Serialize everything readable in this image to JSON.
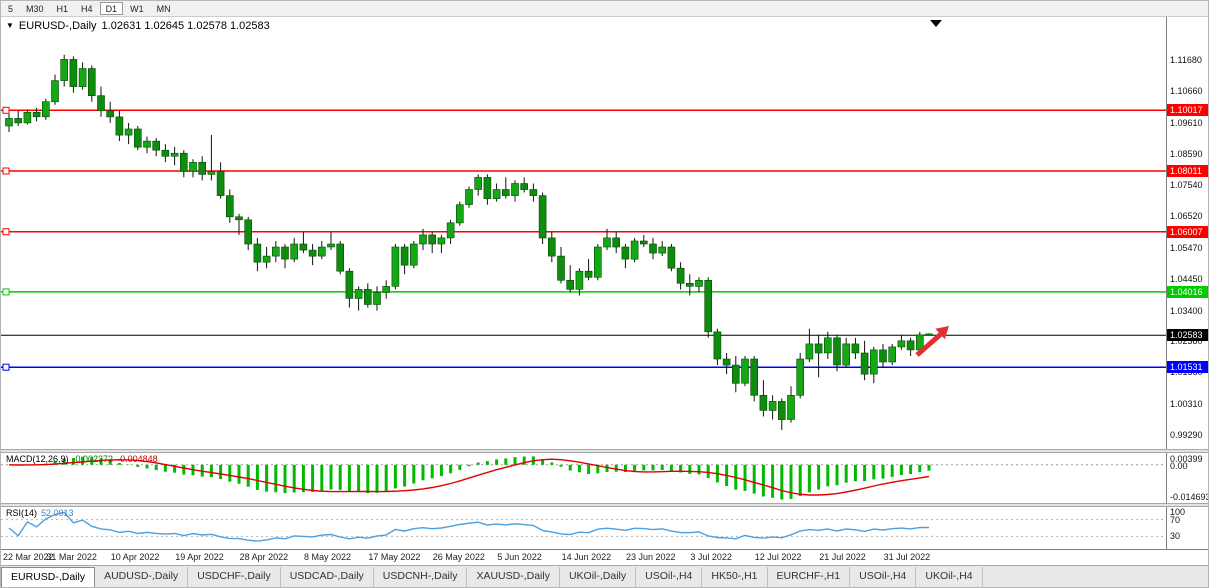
{
  "toolbar": {
    "timeframes": [
      {
        "label": "5",
        "active": false
      },
      {
        "label": "M30",
        "active": false
      },
      {
        "label": "H1",
        "active": false
      },
      {
        "label": "H4",
        "active": false
      },
      {
        "label": "D1",
        "active": true
      },
      {
        "label": "W1",
        "active": false
      },
      {
        "label": "MN",
        "active": false
      }
    ]
  },
  "chart": {
    "title": "EURUSD-,Daily",
    "ohlc": "1.02631 1.02645 1.02578 1.02583",
    "macd": {
      "name": "MACD(12,26,9)",
      "main": "-0.002372",
      "signal": "-0.004848"
    },
    "rsi": {
      "name": "RSI(14)",
      "value": "52.0913"
    }
  },
  "chart_data": {
    "type": "candlestick",
    "title": "EURUSD-,Daily",
    "symbol": "EURUSD-",
    "timeframe": "Daily",
    "last_ohlc": {
      "open": 1.02631,
      "high": 1.02645,
      "low": 1.02578,
      "close": 1.02583
    },
    "y_ticks": [
      "1.11680",
      "1.10660",
      "1.09610",
      "1.08590",
      "1.07540",
      "1.06520",
      "1.05470",
      "1.04450",
      "1.03400",
      "1.02380",
      "1.01360",
      "1.00310",
      "0.99290"
    ],
    "x_labels": [
      "22 Mar 2022",
      "31 Mar 2022",
      "10 Apr 2022",
      "19 Apr 2022",
      "28 Apr 2022",
      "8 May 2022",
      "17 May 2022",
      "26 May 2022",
      "5 Jun 2022",
      "14 Jun 2022",
      "23 Jun 2022",
      "3 Jul 2022",
      "12 Jul 2022",
      "21 Jul 2022",
      "31 Jul 2022"
    ],
    "hlines": [
      {
        "price": 1.10017,
        "label": "1.10017",
        "color": "#ff0000"
      },
      {
        "price": 1.08011,
        "label": "1.08011",
        "color": "#ff0000"
      },
      {
        "price": 1.06007,
        "label": "1.06007",
        "color": "#ff0000"
      },
      {
        "price": 1.04016,
        "label": "1.04016",
        "color": "#00cc00"
      },
      {
        "price": 1.01531,
        "label": "1.01531",
        "color": "#0000ff"
      }
    ],
    "current_price": {
      "price": 1.02583,
      "label": "1.02583",
      "color": "#000000"
    },
    "macd_axis_labels": [
      "0.00399",
      "0.00",
      "-0.014693"
    ],
    "rsi_levels": [
      {
        "label": "100",
        "value": 100
      },
      {
        "label": "70",
        "value": 70
      },
      {
        "label": "30",
        "value": 30
      }
    ],
    "annotations": [
      {
        "type": "arrow",
        "direction": "up-right",
        "color": "#e03030"
      }
    ],
    "candles": [
      [
        1.095,
        1.099,
        1.093,
        1.0975
      ],
      [
        1.0975,
        1.1,
        1.095,
        1.096
      ],
      [
        1.096,
        1.1005,
        1.0955,
        1.0995
      ],
      [
        1.0995,
        1.101,
        1.0965,
        1.098
      ],
      [
        1.098,
        1.104,
        1.097,
        1.103
      ],
      [
        1.103,
        1.112,
        1.102,
        1.11
      ],
      [
        1.11,
        1.1185,
        1.108,
        1.117
      ],
      [
        1.117,
        1.118,
        1.106,
        1.108
      ],
      [
        1.108,
        1.116,
        1.107,
        1.114
      ],
      [
        1.114,
        1.115,
        1.103,
        1.105
      ],
      [
        1.105,
        1.108,
        1.098,
        1.1
      ],
      [
        1.1,
        1.103,
        1.096,
        1.098
      ],
      [
        1.098,
        1.1,
        1.09,
        1.092
      ],
      [
        1.092,
        1.096,
        1.089,
        1.094
      ],
      [
        1.094,
        1.095,
        1.087,
        1.088
      ],
      [
        1.088,
        1.0915,
        1.086,
        1.09
      ],
      [
        1.09,
        1.091,
        1.085,
        1.087
      ],
      [
        1.087,
        1.089,
        1.083,
        1.085
      ],
      [
        1.085,
        1.088,
        1.082,
        1.086
      ],
      [
        1.086,
        1.087,
        1.078,
        1.08
      ],
      [
        1.08,
        1.084,
        1.078,
        1.083
      ],
      [
        1.083,
        1.085,
        1.077,
        1.079
      ],
      [
        1.079,
        1.092,
        1.077,
        1.08
      ],
      [
        1.08,
        1.083,
        1.071,
        1.072
      ],
      [
        1.072,
        1.074,
        1.063,
        1.065
      ],
      [
        1.065,
        1.066,
        1.059,
        1.064
      ],
      [
        1.064,
        1.065,
        1.054,
        1.056
      ],
      [
        1.056,
        1.058,
        1.047,
        1.05
      ],
      [
        1.05,
        1.055,
        1.048,
        1.052
      ],
      [
        1.052,
        1.057,
        1.05,
        1.055
      ],
      [
        1.055,
        1.056,
        1.048,
        1.051
      ],
      [
        1.051,
        1.058,
        1.05,
        1.056
      ],
      [
        1.056,
        1.06,
        1.053,
        1.054
      ],
      [
        1.054,
        1.056,
        1.049,
        1.052
      ],
      [
        1.052,
        1.057,
        1.051,
        1.055
      ],
      [
        1.055,
        1.06,
        1.054,
        1.056
      ],
      [
        1.056,
        1.057,
        1.046,
        1.047
      ],
      [
        1.047,
        1.048,
        1.035,
        1.038
      ],
      [
        1.038,
        1.042,
        1.034,
        1.041
      ],
      [
        1.041,
        1.043,
        1.035,
        1.036
      ],
      [
        1.036,
        1.042,
        1.034,
        1.04
      ],
      [
        1.04,
        1.044,
        1.038,
        1.042
      ],
      [
        1.042,
        1.056,
        1.041,
        1.055
      ],
      [
        1.055,
        1.056,
        1.046,
        1.049
      ],
      [
        1.049,
        1.057,
        1.048,
        1.056
      ],
      [
        1.056,
        1.061,
        1.054,
        1.059
      ],
      [
        1.059,
        1.06,
        1.053,
        1.056
      ],
      [
        1.056,
        1.059,
        1.053,
        1.058
      ],
      [
        1.058,
        1.064,
        1.056,
        1.063
      ],
      [
        1.063,
        1.07,
        1.062,
        1.069
      ],
      [
        1.069,
        1.075,
        1.068,
        1.074
      ],
      [
        1.074,
        1.079,
        1.072,
        1.078
      ],
      [
        1.078,
        1.079,
        1.069,
        1.071
      ],
      [
        1.071,
        1.076,
        1.07,
        1.074
      ],
      [
        1.074,
        1.078,
        1.071,
        1.072
      ],
      [
        1.072,
        1.077,
        1.07,
        1.076
      ],
      [
        1.076,
        1.078,
        1.073,
        1.074
      ],
      [
        1.074,
        1.076,
        1.07,
        1.072
      ],
      [
        1.072,
        1.073,
        1.056,
        1.058
      ],
      [
        1.058,
        1.06,
        1.05,
        1.052
      ],
      [
        1.052,
        1.055,
        1.043,
        1.044
      ],
      [
        1.044,
        1.049,
        1.04,
        1.041
      ],
      [
        1.041,
        1.048,
        1.039,
        1.047
      ],
      [
        1.047,
        1.051,
        1.044,
        1.045
      ],
      [
        1.045,
        1.056,
        1.044,
        1.055
      ],
      [
        1.055,
        1.061,
        1.054,
        1.058
      ],
      [
        1.058,
        1.06,
        1.053,
        1.055
      ],
      [
        1.055,
        1.056,
        1.048,
        1.051
      ],
      [
        1.051,
        1.058,
        1.05,
        1.057
      ],
      [
        1.057,
        1.059,
        1.055,
        1.056
      ],
      [
        1.056,
        1.058,
        1.051,
        1.053
      ],
      [
        1.053,
        1.057,
        1.052,
        1.055
      ],
      [
        1.055,
        1.056,
        1.047,
        1.048
      ],
      [
        1.048,
        1.05,
        1.041,
        1.043
      ],
      [
        1.043,
        1.046,
        1.039,
        1.042
      ],
      [
        1.042,
        1.045,
        1.04,
        1.044
      ],
      [
        1.044,
        1.045,
        1.025,
        1.027
      ],
      [
        1.027,
        1.028,
        1.016,
        1.018
      ],
      [
        1.018,
        1.02,
        1.013,
        1.016
      ],
      [
        1.016,
        1.019,
        1.007,
        1.01
      ],
      [
        1.01,
        1.019,
        1.009,
        1.018
      ],
      [
        1.018,
        1.019,
        1.004,
        1.006
      ],
      [
        1.006,
        1.011,
        0.999,
        1.001
      ],
      [
        1.001,
        1.006,
        0.998,
        1.004
      ],
      [
        1.004,
        1.005,
        0.9945,
        0.998
      ],
      [
        0.998,
        1.009,
        0.997,
        1.006
      ],
      [
        1.006,
        1.02,
        1.005,
        1.018
      ],
      [
        1.018,
        1.028,
        1.017,
        1.023
      ],
      [
        1.023,
        1.026,
        1.012,
        1.02
      ],
      [
        1.02,
        1.027,
        1.018,
        1.025
      ],
      [
        1.025,
        1.026,
        1.014,
        1.016
      ],
      [
        1.016,
        1.025,
        1.015,
        1.023
      ],
      [
        1.023,
        1.025,
        1.018,
        1.02
      ],
      [
        1.02,
        1.024,
        1.011,
        1.013
      ],
      [
        1.013,
        1.022,
        1.01,
        1.021
      ],
      [
        1.021,
        1.023,
        1.015,
        1.017
      ],
      [
        1.017,
        1.023,
        1.016,
        1.022
      ],
      [
        1.022,
        1.026,
        1.021,
        1.024
      ],
      [
        1.024,
        1.025,
        1.019,
        1.021
      ],
      [
        1.021,
        1.027,
        1.02,
        1.026
      ],
      [
        1.0263,
        1.0265,
        1.0258,
        1.0258
      ]
    ]
  },
  "tabs": [
    {
      "label": "EURUSD-,Daily",
      "active": true
    },
    {
      "label": "AUDUSD-,Daily",
      "active": false
    },
    {
      "label": "USDCHF-,Daily",
      "active": false
    },
    {
      "label": "USDCAD-,Daily",
      "active": false
    },
    {
      "label": "USDCNH-,Daily",
      "active": false
    },
    {
      "label": "XAUUSD-,Daily",
      "active": false
    },
    {
      "label": "UKOil-,Daily",
      "active": false
    },
    {
      "label": "USOil-,H4",
      "active": false
    },
    {
      "label": "HK50-,H1",
      "active": false
    },
    {
      "label": "EURCHF-,H1",
      "active": false
    },
    {
      "label": "USOil-,H4",
      "active": false
    },
    {
      "label": "UKOil-,H4",
      "active": false
    }
  ],
  "colors": {
    "bull_candle": "#15a815",
    "bear_candle": "#0d8c0d",
    "wick": "#111111",
    "price_line": "#000000",
    "macd_histogram": "#00bb00",
    "macd_signal": "#e00000",
    "rsi_line": "#4da0e0",
    "arrow": "#e03030"
  }
}
